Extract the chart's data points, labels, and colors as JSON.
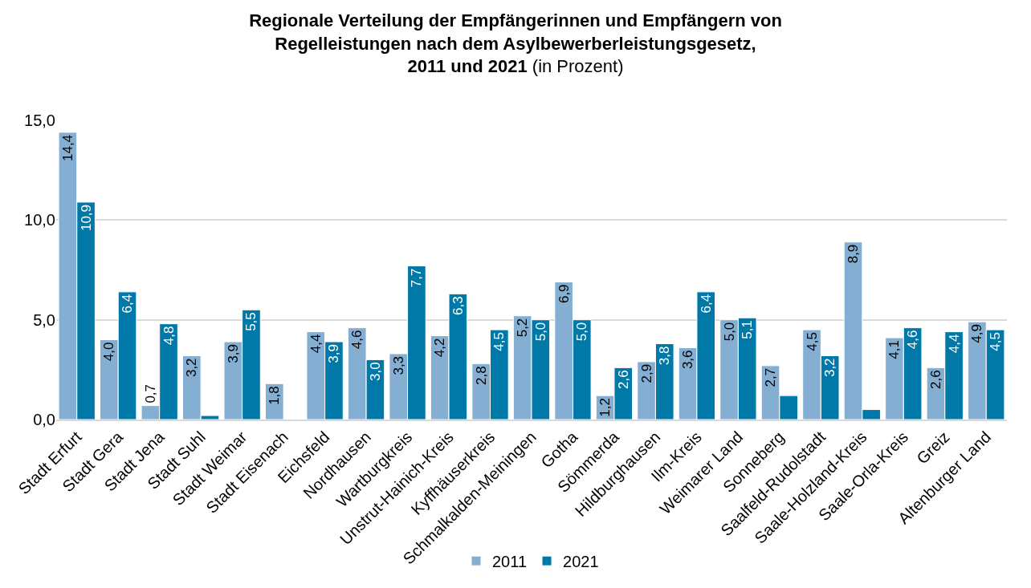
{
  "chart_data": {
    "type": "bar",
    "title": "Regionale Verteilung der Empfängerinnen und Empfängern von\nRegelleistungen nach dem Asylbewerberleistungsgesetz,\n2011 und 2021",
    "subtitle": "(in Prozent)",
    "categories": [
      "Stadt Erfurt",
      "Stadt Gera",
      "Stadt Jena",
      "Stadt Suhl",
      "Stadt Weimar",
      "Stadt Eisenach",
      "Eichsfeld",
      "Nordhausen",
      "Wartburgkreis",
      "Unstrut-Hainich-Kreis",
      "Kyffhäuserkreis",
      "Schmalkalden-Meiningen",
      "Gotha",
      "Sömmerda",
      "Hildburghausen",
      "Ilm-Kreis",
      "Weimarer Land",
      "Sonneberg",
      "Saalfeld-Rudolstadt",
      "Saale-Holzland-Kreis",
      "Saale-Orla-Kreis",
      "Greiz",
      "Altenburger Land"
    ],
    "series": [
      {
        "name": "2011",
        "color": "#85aed3",
        "values": [
          14.4,
          4.0,
          0.7,
          3.2,
          3.9,
          1.8,
          4.4,
          4.6,
          3.3,
          4.2,
          2.8,
          5.2,
          6.9,
          1.2,
          2.9,
          3.6,
          5.0,
          2.7,
          4.5,
          8.9,
          4.1,
          2.6,
          4.9
        ],
        "value_labels": [
          "14,4",
          "4,0",
          "0,7",
          "3,2",
          "3,9",
          "1,8",
          "4,4",
          "4,6",
          "3,3",
          "4,2",
          "2,8",
          "5,2",
          "6,9",
          "1,2",
          "2,9",
          "3,6",
          "5,0",
          "2,7",
          "4,5",
          "8,9",
          "4,1",
          "2,6",
          "4,9"
        ]
      },
      {
        "name": "2021",
        "color": "#0079a8",
        "values": [
          10.9,
          6.4,
          4.8,
          0.2,
          5.5,
          null,
          3.9,
          3.0,
          7.7,
          6.3,
          4.5,
          5.0,
          5.0,
          2.6,
          3.8,
          6.4,
          5.1,
          1.2,
          3.2,
          0.5,
          4.6,
          4.4,
          4.5
        ],
        "value_labels": [
          "10,9",
          "6,4",
          "4,8",
          null,
          "5,5",
          null,
          "3,9",
          "3,0",
          "7,7",
          "6,3",
          "4,5",
          "5,0",
          "5,0",
          "2,6",
          "3,8",
          "6,4",
          "5,1",
          null,
          "3,2",
          null,
          "4,6",
          "4,4",
          "4,5"
        ]
      }
    ],
    "ylim": [
      0,
      15
    ],
    "yticks": [
      {
        "value": 0,
        "label": "0,0"
      },
      {
        "value": 5,
        "label": "5,0"
      },
      {
        "value": 10,
        "label": "10,0"
      },
      {
        "value": 15,
        "label": "15,0"
      }
    ],
    "grid": "y",
    "legend": "bottom"
  }
}
